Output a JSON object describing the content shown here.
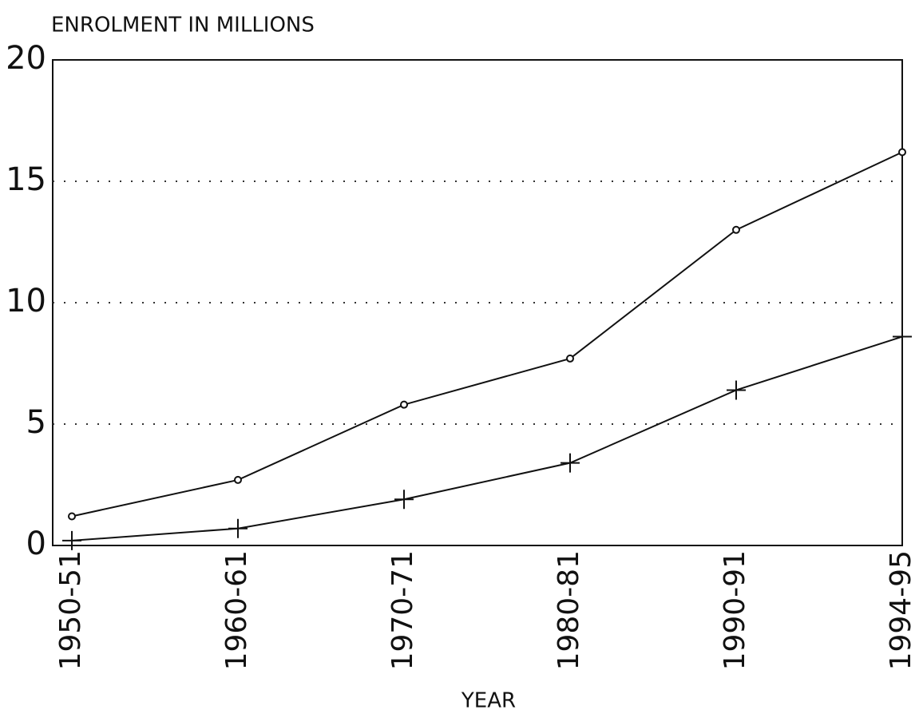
{
  "chart_data": {
    "type": "line",
    "title": "ENROLMENT IN MILLIONS",
    "x_label": "YEAR",
    "categories": [
      "1950-51",
      "1960-61",
      "1970-71",
      "1980-81",
      "1990-91",
      "1994-95"
    ],
    "series": [
      {
        "color": "#111111",
        "marker": "circle",
        "values": [
          1.2,
          2.7,
          5.8,
          7.7,
          13.0,
          16.2
        ]
      },
      {
        "color": "#111111",
        "marker": "plus",
        "values": [
          0.2,
          0.7,
          1.9,
          3.4,
          6.4,
          8.6
        ]
      }
    ],
    "ylim": [
      0,
      20
    ],
    "yticks": [
      0,
      5,
      10,
      15,
      20
    ],
    "grid": true
  }
}
